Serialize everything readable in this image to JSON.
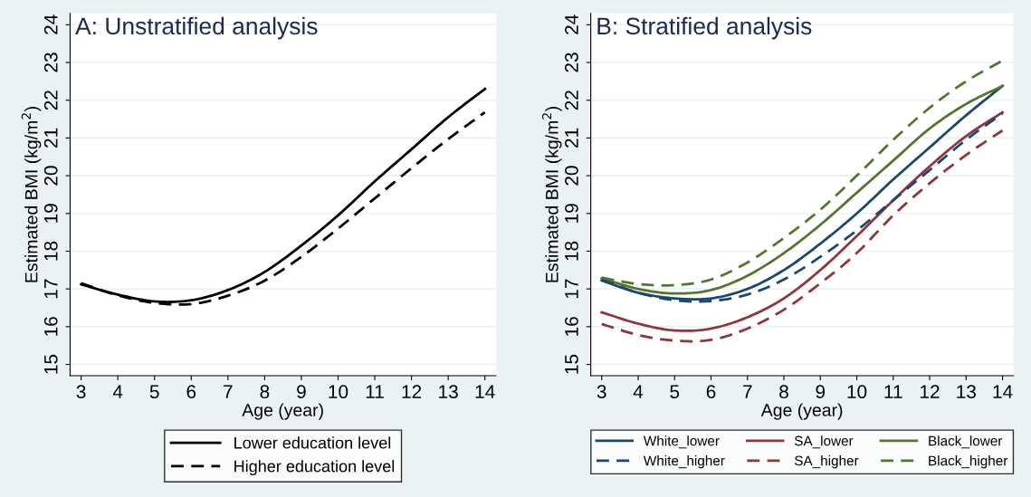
{
  "chart_data": [
    {
      "type": "line",
      "title": "A: Unstratified analysis",
      "xlabel": "Age (year)",
      "ylabel": "Estimated BMI (kg/m$^{2}$)",
      "x": [
        3,
        4,
        5,
        6,
        7,
        8,
        9,
        10,
        11,
        12,
        13,
        14
      ],
      "xlim": [
        2.7,
        14.3
      ],
      "xticks": [
        3,
        4,
        5,
        6,
        7,
        8,
        9,
        10,
        11,
        12,
        13,
        14
      ],
      "ylim": [
        14.7,
        24.3
      ],
      "yticks": [
        15,
        16,
        17,
        18,
        19,
        20,
        21,
        22,
        23,
        24
      ],
      "grid": "y",
      "legend": "bottom",
      "series": [
        {
          "name": "Lower education level",
          "color": "#000000",
          "line_style": "solid",
          "values": [
            17.12,
            16.85,
            16.67,
            16.7,
            16.97,
            17.45,
            18.15,
            18.95,
            19.85,
            20.7,
            21.55,
            22.3
          ]
        },
        {
          "name": "Higher education level",
          "color": "#000000",
          "line_style": "dashed",
          "values": [
            17.15,
            16.83,
            16.63,
            16.6,
            16.82,
            17.22,
            17.85,
            18.6,
            19.4,
            20.2,
            20.97,
            21.68
          ]
        }
      ]
    },
    {
      "type": "line",
      "title": "B: Stratified analysis",
      "xlabel": "Age (year)",
      "ylabel": "Estimated BMI (kg/m$^{2}$)",
      "x": [
        3,
        4,
        5,
        6,
        7,
        8,
        9,
        10,
        11,
        12,
        13,
        14
      ],
      "xlim": [
        2.7,
        14.3
      ],
      "xticks": [
        3,
        4,
        5,
        6,
        7,
        8,
        9,
        10,
        11,
        12,
        13,
        14
      ],
      "ylim": [
        14.7,
        24.3
      ],
      "yticks": [
        15,
        16,
        17,
        18,
        19,
        20,
        21,
        22,
        23,
        24
      ],
      "grid": "y",
      "legend": "bottom",
      "series": [
        {
          "name": "White_lower",
          "color": "#1a476f",
          "line_style": "solid",
          "values": [
            17.22,
            16.9,
            16.75,
            16.75,
            17.0,
            17.5,
            18.2,
            19.0,
            19.9,
            20.75,
            21.6,
            22.38
          ]
        },
        {
          "name": "SA_lower",
          "color": "#90353b",
          "line_style": "solid",
          "values": [
            16.38,
            16.08,
            15.9,
            15.95,
            16.25,
            16.75,
            17.5,
            18.4,
            19.35,
            20.25,
            21.05,
            21.68
          ]
        },
        {
          "name": "Black_lower",
          "color": "#55752f",
          "line_style": "solid",
          "values": [
            17.28,
            17.0,
            16.88,
            16.97,
            17.35,
            17.95,
            18.7,
            19.55,
            20.4,
            21.25,
            21.9,
            22.38
          ]
        },
        {
          "name": "White_higher",
          "color": "#1a476f",
          "line_style": "dashed",
          "values": [
            17.25,
            16.9,
            16.7,
            16.68,
            16.85,
            17.25,
            17.85,
            18.55,
            19.35,
            20.15,
            20.95,
            21.65
          ]
        },
        {
          "name": "SA_higher",
          "color": "#90353b",
          "line_style": "dashed",
          "values": [
            16.07,
            15.78,
            15.63,
            15.65,
            15.95,
            16.45,
            17.15,
            17.95,
            18.95,
            19.8,
            20.55,
            21.2
          ]
        },
        {
          "name": "Black_higher",
          "color": "#55752f",
          "line_style": "dashed",
          "values": [
            17.3,
            17.13,
            17.1,
            17.25,
            17.7,
            18.35,
            19.1,
            20.0,
            20.95,
            21.8,
            22.5,
            23.05
          ]
        }
      ]
    }
  ]
}
